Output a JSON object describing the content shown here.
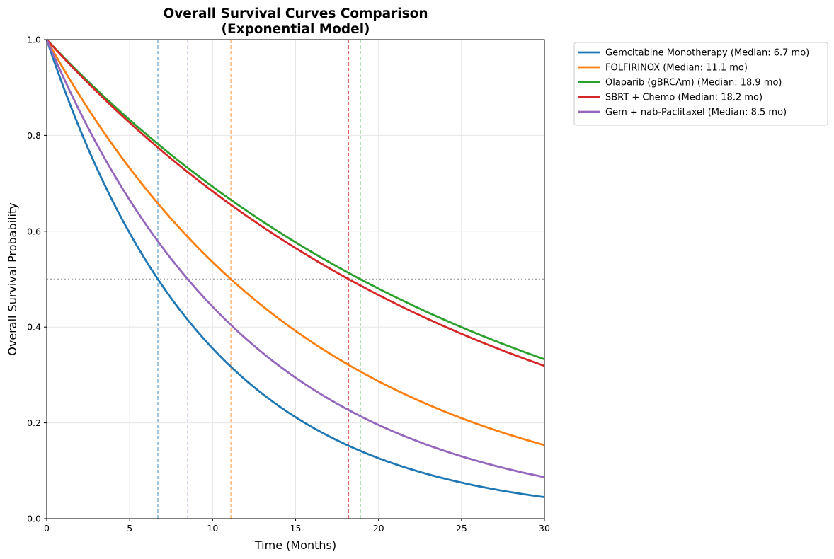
{
  "chart_data": {
    "type": "line",
    "title": "Overall Survival Curves Comparison",
    "subtitle": "(Exponential Model)",
    "xlabel": "Time (Months)",
    "ylabel": "Overall Survival Probability",
    "xlim": [
      0,
      30
    ],
    "ylim": [
      0,
      1
    ],
    "xticks": [
      0,
      5,
      10,
      15,
      20,
      25,
      30
    ],
    "xtick_labels": [
      "0",
      "5",
      "10",
      "15",
      "20",
      "25",
      "30"
    ],
    "yticks": [
      0,
      0.2,
      0.4,
      0.6,
      0.8,
      1.0
    ],
    "ytick_labels": [
      "0.0",
      "0.2",
      "0.4",
      "0.6",
      "0.8",
      "1.0"
    ],
    "grid": true,
    "legend_position": "outside-top-right",
    "reference_line_y": 0.5,
    "series": [
      {
        "name": "Gemcitabine Monotherapy (Median: 6.7 mo)",
        "median": 6.7,
        "color": "#1f77b4"
      },
      {
        "name": "FOLFIRINOX (Median: 11.1 mo)",
        "median": 11.1,
        "color": "#ff7f0e"
      },
      {
        "name": "Olaparib (gBRCAm) (Median: 18.9 mo)",
        "median": 18.9,
        "color": "#2ca02c"
      },
      {
        "name": "SBRT + Chemo (Median: 18.2 mo)",
        "median": 18.2,
        "color": "#d62728"
      },
      {
        "name": "Gem + nab-Paclitaxel (Median: 8.5 mo)",
        "median": 8.5,
        "color": "#9467bd"
      }
    ]
  }
}
